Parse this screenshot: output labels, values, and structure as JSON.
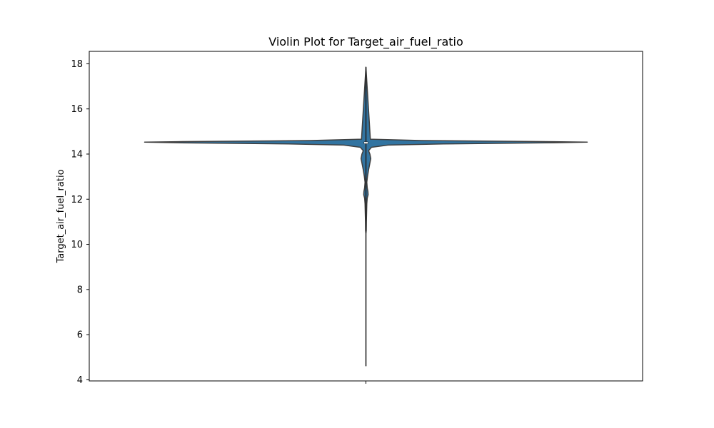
{
  "chart_data": {
    "type": "violin",
    "title": "Violin Plot for Target_air_fuel_ratio",
    "xlabel": "",
    "ylabel": "Target_air_fuel_ratio",
    "ylim": [
      3.95,
      18.55
    ],
    "yticks": [
      4,
      6,
      8,
      10,
      12,
      14,
      16,
      18
    ],
    "grid": false,
    "series": [
      {
        "color": "#3274a1",
        "whisker_min": 4.6,
        "whisker_max": 17.85,
        "q1": 14.45,
        "median": 14.5,
        "q3": 14.55,
        "density_profile": [
          [
            17.85,
            0.0
          ],
          [
            14.66,
            0.02
          ],
          [
            14.6,
            0.25
          ],
          [
            14.55,
            0.85
          ],
          [
            14.53,
            1.0
          ],
          [
            14.5,
            0.85
          ],
          [
            14.45,
            0.35
          ],
          [
            14.4,
            0.1
          ],
          [
            14.3,
            0.025
          ],
          [
            14.15,
            0.012
          ],
          [
            14.0,
            0.018
          ],
          [
            13.8,
            0.022
          ],
          [
            13.6,
            0.018
          ],
          [
            13.3,
            0.012
          ],
          [
            13.0,
            0.007
          ],
          [
            12.75,
            0.004
          ],
          [
            12.5,
            0.006
          ],
          [
            12.35,
            0.009
          ],
          [
            12.2,
            0.01
          ],
          [
            12.05,
            0.006
          ],
          [
            11.8,
            0.004
          ],
          [
            11.4,
            0.003
          ],
          [
            11.0,
            0.002
          ],
          [
            10.6,
            0.0015
          ],
          [
            10.5,
            0.0
          ]
        ]
      }
    ]
  }
}
